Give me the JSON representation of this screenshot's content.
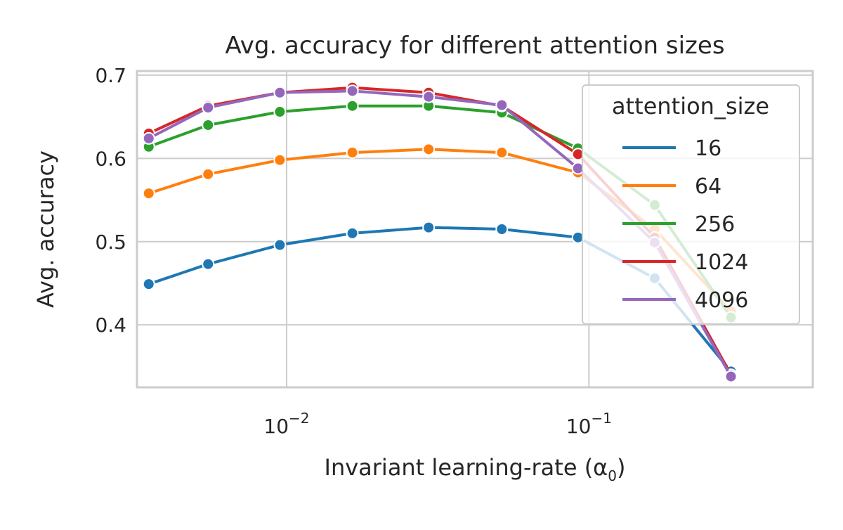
{
  "chart_data": {
    "type": "line",
    "title": "Avg. accuracy for different attention sizes",
    "xlabel": "Invariant learning-rate (α",
    "xlabel_sub": "0",
    "xlabel_close": ")",
    "ylabel": "Avg. accuracy",
    "x_scale": "log",
    "xlim": [
      0.0032,
      0.55
    ],
    "ylim": [
      0.325,
      0.705
    ],
    "x_ticks": [
      {
        "value": 0.01,
        "base": "10",
        "exp": "−2"
      },
      {
        "value": 0.1,
        "base": "10",
        "exp": "−1"
      }
    ],
    "y_ticks": [
      {
        "value": 0.4,
        "label": "0.4"
      },
      {
        "value": 0.5,
        "label": "0.5"
      },
      {
        "value": 0.6,
        "label": "0.6"
      },
      {
        "value": 0.7,
        "label": "0.7"
      }
    ],
    "grid": true,
    "legend_title": "attention_size",
    "legend_position": "upper-right",
    "x": [
      0.0035,
      0.0055,
      0.0095,
      0.0165,
      0.0295,
      0.0515,
      0.092,
      0.165,
      0.295
    ],
    "series": [
      {
        "name": "16",
        "color": "#1f77b4",
        "values": [
          0.449,
          0.473,
          0.496,
          0.51,
          0.517,
          0.515,
          0.505,
          0.456,
          0.344
        ]
      },
      {
        "name": "64",
        "color": "#ff7f0e",
        "values": [
          0.558,
          0.581,
          0.598,
          0.607,
          0.611,
          0.607,
          0.583,
          0.515,
          0.416
        ]
      },
      {
        "name": "256",
        "color": "#2ca02c",
        "values": [
          0.614,
          0.64,
          0.656,
          0.663,
          0.663,
          0.655,
          0.612,
          0.544,
          0.409
        ]
      },
      {
        "name": "1024",
        "color": "#d62728",
        "values": [
          0.63,
          0.663,
          0.679,
          0.685,
          0.679,
          0.663,
          0.605,
          0.505,
          0.34
        ]
      },
      {
        "name": "4096",
        "color": "#9467bd",
        "values": [
          0.624,
          0.661,
          0.679,
          0.681,
          0.674,
          0.664,
          0.588,
          0.499,
          0.338
        ]
      }
    ]
  }
}
